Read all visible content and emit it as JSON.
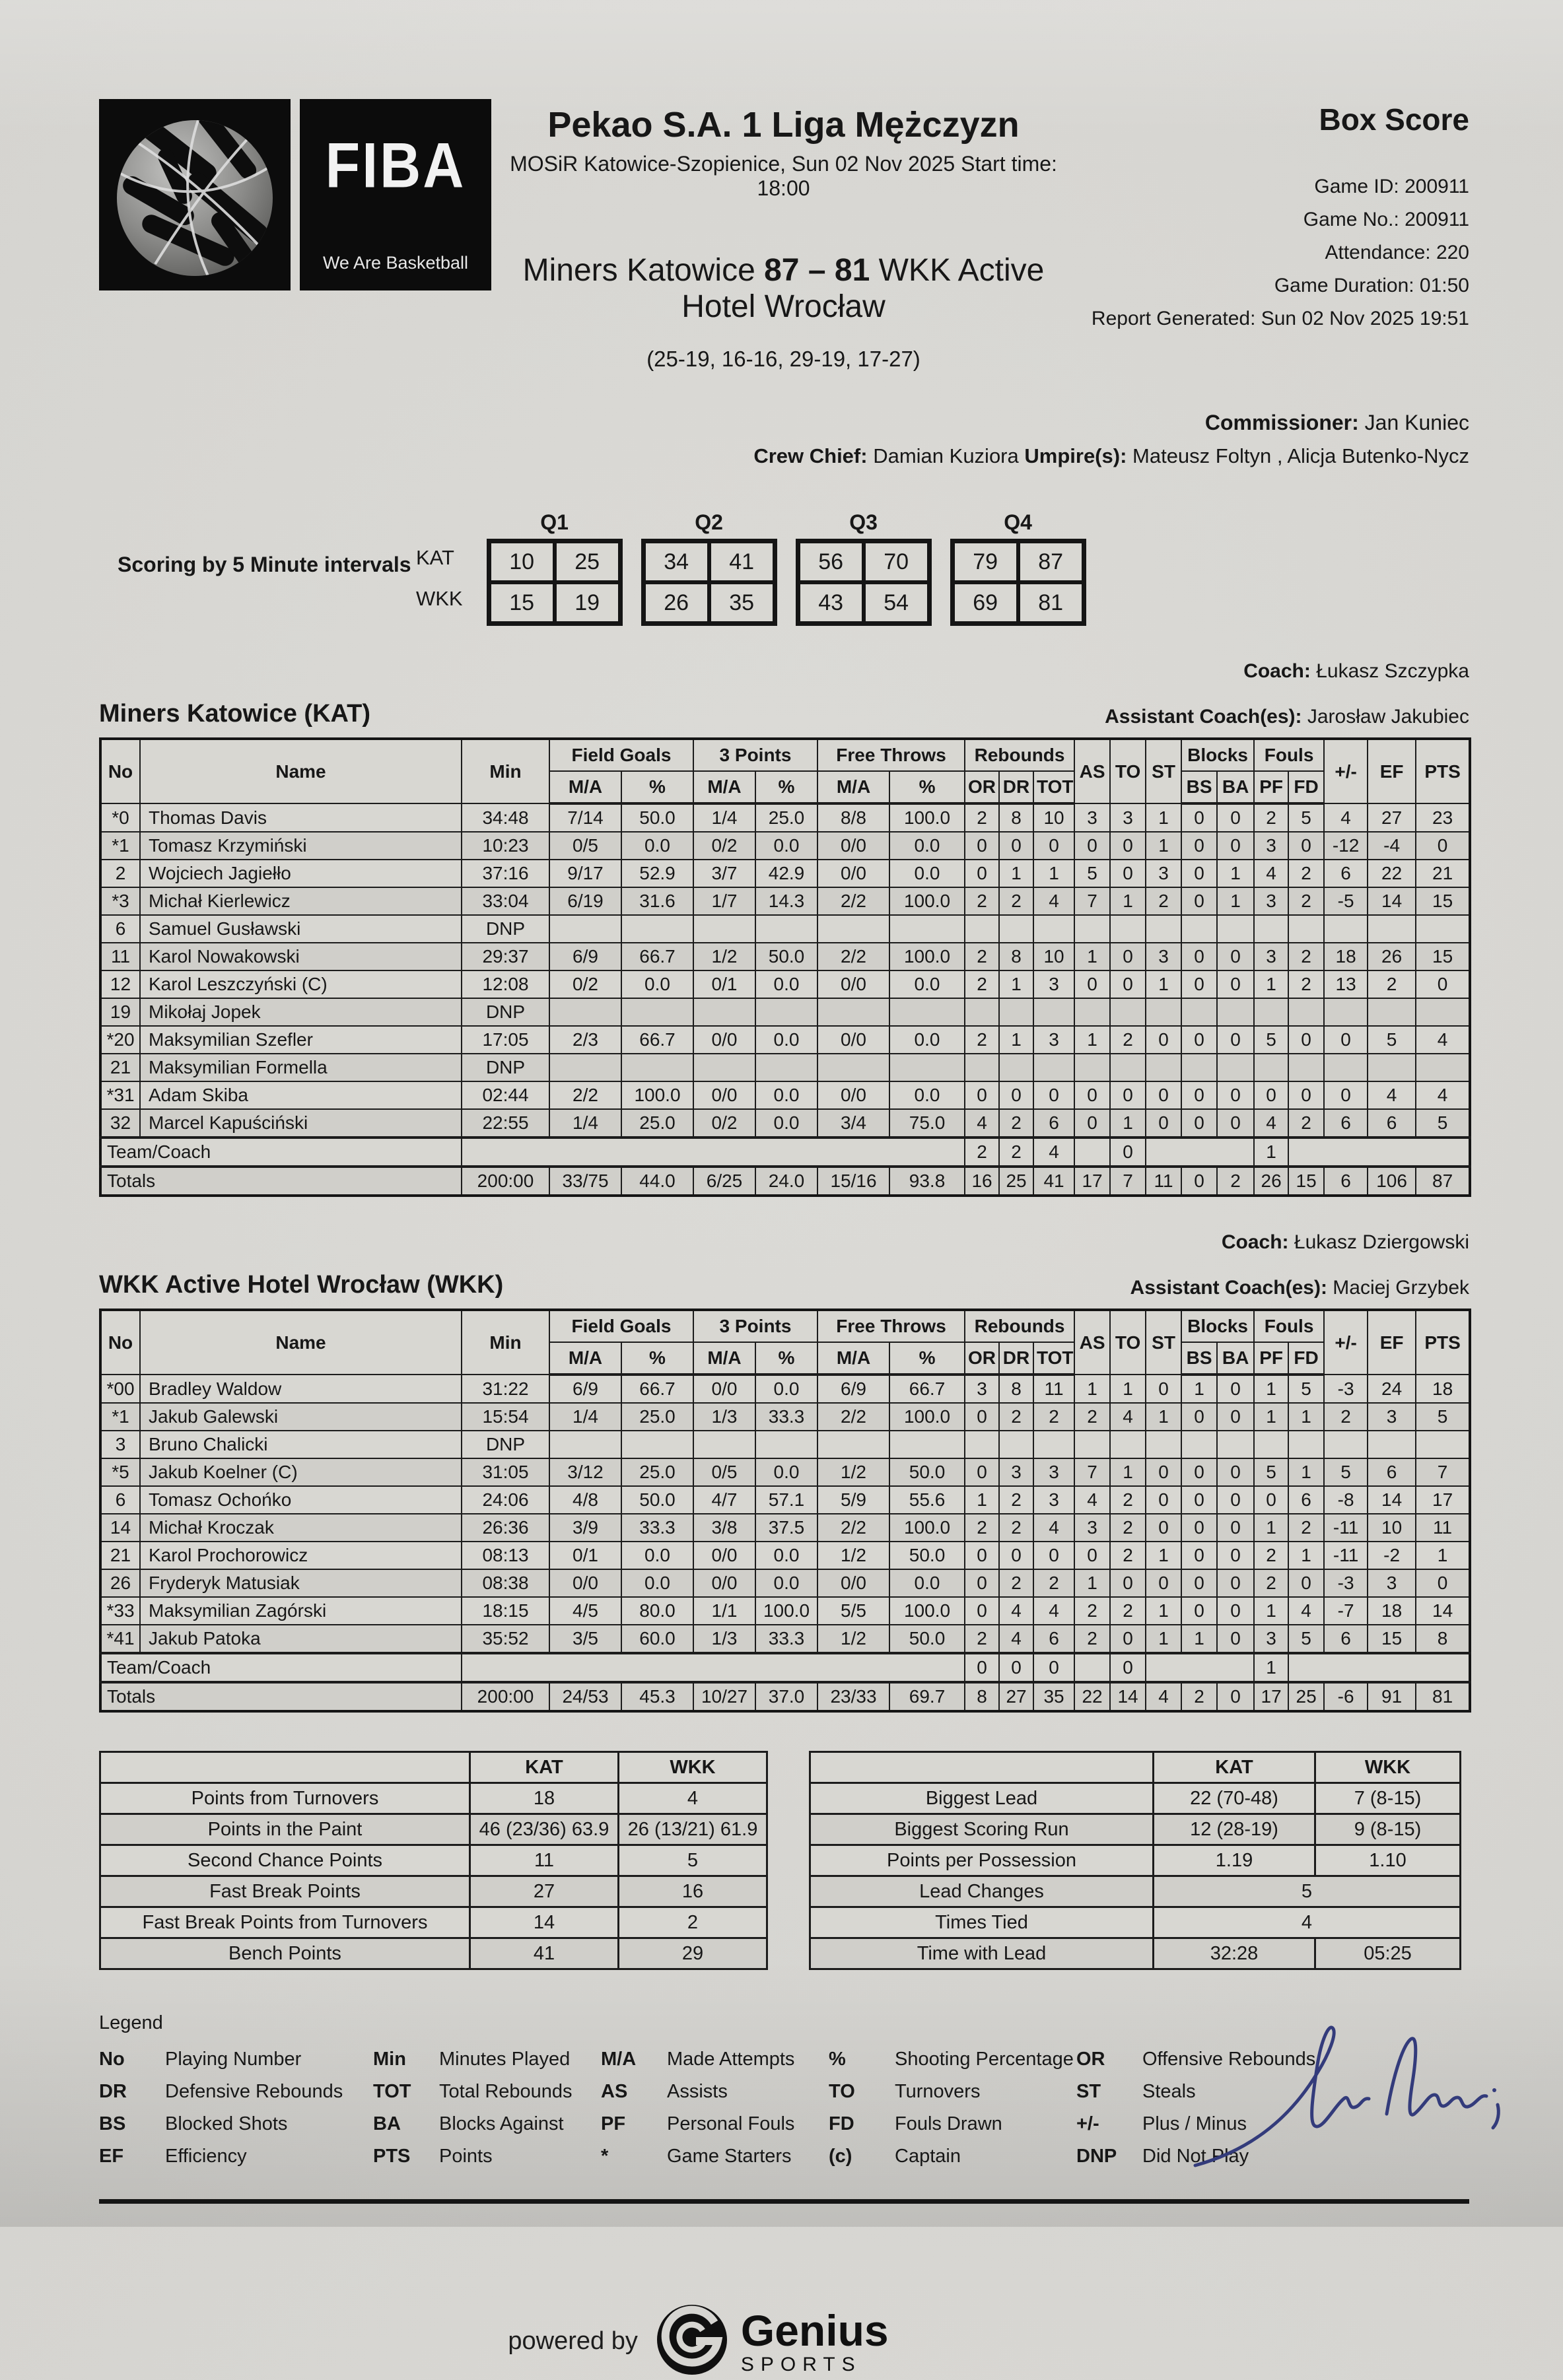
{
  "logo": {
    "fiba": "FIBA",
    "tagline": "We Are Basketball"
  },
  "header": {
    "league": "Pekao S.A. 1 Liga Mężczyzn",
    "venue": "MOSiR Katowice-Szopienice, Sun 02 Nov 2025 Start time: 18:00",
    "home_team": "Miners Katowice",
    "home_score": "87",
    "separator": "–",
    "away_score": "81",
    "away_team": "WKK Active Hotel Wrocław",
    "quarter_scores": "(25-19, 16-16, 29-19, 17-27)",
    "box_score_title": "Box Score",
    "info_lines": [
      "Game ID: 200911",
      "Game No.: 200911",
      "Attendance: 220",
      "Game Duration: 01:50",
      "Report Generated: Sun 02 Nov 2025 19:51"
    ],
    "commissioner_label": "Commissioner:",
    "commissioner": "Jan Kuniec",
    "crew_chief_label": "Crew Chief:",
    "crew_chief": "Damian Kuziora",
    "umpires_label": "Umpire(s):",
    "umpires": "Mateusz Foltyn , Alicja Butenko-Nycz"
  },
  "intervals": {
    "label": "Scoring by 5 Minute intervals",
    "quarters": [
      "Q1",
      "Q2",
      "Q3",
      "Q4"
    ],
    "rows": [
      {
        "team": "KAT",
        "values": [
          "10",
          "25",
          "34",
          "41",
          "56",
          "70",
          "79",
          "87"
        ]
      },
      {
        "team": "WKK",
        "values": [
          "15",
          "19",
          "26",
          "35",
          "43",
          "54",
          "69",
          "81"
        ]
      }
    ]
  },
  "table_header": {
    "no": "No",
    "name": "Name",
    "min": "Min",
    "field_goals": "Field Goals",
    "three_points": "3 Points",
    "free_throws": "Free Throws",
    "rebounds": "Rebounds",
    "ma": "M/A",
    "pct": "%",
    "or": "OR",
    "dr": "DR",
    "tot": "TOT",
    "as": "AS",
    "to": "TO",
    "st": "ST",
    "blocks": "Blocks",
    "bs": "BS",
    "ba": "BA",
    "fouls": "Fouls",
    "pf": "PF",
    "fd": "FD",
    "plus_minus": "+/-",
    "ef": "EF",
    "pts": "PTS",
    "dnp": "DNP"
  },
  "teams": [
    {
      "title": "Miners Katowice (KAT)",
      "coach_label": "Coach:",
      "coach": "Łukasz Szczypka",
      "assistant_label": "Assistant Coach(es):",
      "assistant": "Jarosław Jakubiec",
      "players": [
        {
          "no": "*0",
          "name": "Thomas Davis",
          "min": "34:48",
          "fg": "7/14",
          "fg_pct": "50.0",
          "p3": "1/4",
          "p3_pct": "25.0",
          "ft": "8/8",
          "ft_pct": "100.0",
          "or": "2",
          "dr": "8",
          "tot": "10",
          "as": "3",
          "to": "3",
          "st": "1",
          "bs": "0",
          "ba": "0",
          "pf": "2",
          "fd": "5",
          "pm": "4",
          "ef": "27",
          "pts": "23"
        },
        {
          "no": "*1",
          "name": "Tomasz Krzymiński",
          "min": "10:23",
          "fg": "0/5",
          "fg_pct": "0.0",
          "p3": "0/2",
          "p3_pct": "0.0",
          "ft": "0/0",
          "ft_pct": "0.0",
          "or": "0",
          "dr": "0",
          "tot": "0",
          "as": "0",
          "to": "0",
          "st": "1",
          "bs": "0",
          "ba": "0",
          "pf": "3",
          "fd": "0",
          "pm": "-12",
          "ef": "-4",
          "pts": "0"
        },
        {
          "no": "2",
          "name": "Wojciech Jagiełło",
          "min": "37:16",
          "fg": "9/17",
          "fg_pct": "52.9",
          "p3": "3/7",
          "p3_pct": "42.9",
          "ft": "0/0",
          "ft_pct": "0.0",
          "or": "0",
          "dr": "1",
          "tot": "1",
          "as": "5",
          "to": "0",
          "st": "3",
          "bs": "0",
          "ba": "1",
          "pf": "4",
          "fd": "2",
          "pm": "6",
          "ef": "22",
          "pts": "21"
        },
        {
          "no": "*3",
          "name": "Michał Kierlewicz",
          "min": "33:04",
          "fg": "6/19",
          "fg_pct": "31.6",
          "p3": "1/7",
          "p3_pct": "14.3",
          "ft": "2/2",
          "ft_pct": "100.0",
          "or": "2",
          "dr": "2",
          "tot": "4",
          "as": "7",
          "to": "1",
          "st": "2",
          "bs": "0",
          "ba": "1",
          "pf": "3",
          "fd": "2",
          "pm": "-5",
          "ef": "14",
          "pts": "15"
        },
        {
          "no": "6",
          "name": "Samuel Gusławski",
          "dnp": true
        },
        {
          "no": "11",
          "name": "Karol Nowakowski",
          "min": "29:37",
          "fg": "6/9",
          "fg_pct": "66.7",
          "p3": "1/2",
          "p3_pct": "50.0",
          "ft": "2/2",
          "ft_pct": "100.0",
          "or": "2",
          "dr": "8",
          "tot": "10",
          "as": "1",
          "to": "0",
          "st": "3",
          "bs": "0",
          "ba": "0",
          "pf": "3",
          "fd": "2",
          "pm": "18",
          "ef": "26",
          "pts": "15"
        },
        {
          "no": "12",
          "name": "Karol Leszczyński (C)",
          "min": "12:08",
          "fg": "0/2",
          "fg_pct": "0.0",
          "p3": "0/1",
          "p3_pct": "0.0",
          "ft": "0/0",
          "ft_pct": "0.0",
          "or": "2",
          "dr": "1",
          "tot": "3",
          "as": "0",
          "to": "0",
          "st": "1",
          "bs": "0",
          "ba": "0",
          "pf": "1",
          "fd": "2",
          "pm": "13",
          "ef": "2",
          "pts": "0"
        },
        {
          "no": "19",
          "name": "Mikołaj Jopek",
          "dnp": true
        },
        {
          "no": "*20",
          "name": "Maksymilian Szefler",
          "min": "17:05",
          "fg": "2/3",
          "fg_pct": "66.7",
          "p3": "0/0",
          "p3_pct": "0.0",
          "ft": "0/0",
          "ft_pct": "0.0",
          "or": "2",
          "dr": "1",
          "tot": "3",
          "as": "1",
          "to": "2",
          "st": "0",
          "bs": "0",
          "ba": "0",
          "pf": "5",
          "fd": "0",
          "pm": "0",
          "ef": "5",
          "pts": "4"
        },
        {
          "no": "21",
          "name": "Maksymilian Formella",
          "dnp": true
        },
        {
          "no": "*31",
          "name": "Adam Skiba",
          "min": "02:44",
          "fg": "2/2",
          "fg_pct": "100.0",
          "p3": "0/0",
          "p3_pct": "0.0",
          "ft": "0/0",
          "ft_pct": "0.0",
          "or": "0",
          "dr": "0",
          "tot": "0",
          "as": "0",
          "to": "0",
          "st": "0",
          "bs": "0",
          "ba": "0",
          "pf": "0",
          "fd": "0",
          "pm": "0",
          "ef": "4",
          "pts": "4"
        },
        {
          "no": "32",
          "name": "Marcel Kapuściński",
          "min": "22:55",
          "fg": "1/4",
          "fg_pct": "25.0",
          "p3": "0/2",
          "p3_pct": "0.0",
          "ft": "3/4",
          "ft_pct": "75.0",
          "or": "4",
          "dr": "2",
          "tot": "6",
          "as": "0",
          "to": "1",
          "st": "0",
          "bs": "0",
          "ba": "0",
          "pf": "4",
          "fd": "2",
          "pm": "6",
          "ef": "6",
          "pts": "5"
        }
      ],
      "team_coach": {
        "label": "Team/Coach",
        "or": "2",
        "dr": "2",
        "tot": "4",
        "to": "0",
        "pf": "1"
      },
      "totals": {
        "label": "Totals",
        "min": "200:00",
        "fg": "33/75",
        "fg_pct": "44.0",
        "p3": "6/25",
        "p3_pct": "24.0",
        "ft": "15/16",
        "ft_pct": "93.8",
        "or": "16",
        "dr": "25",
        "tot": "41",
        "as": "17",
        "to": "7",
        "st": "11",
        "bs": "0",
        "ba": "2",
        "pf": "26",
        "fd": "15",
        "pm": "6",
        "ef": "106",
        "pts": "87"
      }
    },
    {
      "title": "WKK Active Hotel Wrocław (WKK)",
      "coach_label": "Coach:",
      "coach": "Łukasz Dziergowski",
      "assistant_label": "Assistant Coach(es):",
      "assistant": "Maciej Grzybek",
      "players": [
        {
          "no": "*00",
          "name": "Bradley Waldow",
          "min": "31:22",
          "fg": "6/9",
          "fg_pct": "66.7",
          "p3": "0/0",
          "p3_pct": "0.0",
          "ft": "6/9",
          "ft_pct": "66.7",
          "or": "3",
          "dr": "8",
          "tot": "11",
          "as": "1",
          "to": "1",
          "st": "0",
          "bs": "1",
          "ba": "0",
          "pf": "1",
          "fd": "5",
          "pm": "-3",
          "ef": "24",
          "pts": "18"
        },
        {
          "no": "*1",
          "name": "Jakub Galewski",
          "min": "15:54",
          "fg": "1/4",
          "fg_pct": "25.0",
          "p3": "1/3",
          "p3_pct": "33.3",
          "ft": "2/2",
          "ft_pct": "100.0",
          "or": "0",
          "dr": "2",
          "tot": "2",
          "as": "2",
          "to": "4",
          "st": "1",
          "bs": "0",
          "ba": "0",
          "pf": "1",
          "fd": "1",
          "pm": "2",
          "ef": "3",
          "pts": "5"
        },
        {
          "no": "3",
          "name": "Bruno Chalicki",
          "dnp": true
        },
        {
          "no": "*5",
          "name": "Jakub Koelner (C)",
          "min": "31:05",
          "fg": "3/12",
          "fg_pct": "25.0",
          "p3": "0/5",
          "p3_pct": "0.0",
          "ft": "1/2",
          "ft_pct": "50.0",
          "or": "0",
          "dr": "3",
          "tot": "3",
          "as": "7",
          "to": "1",
          "st": "0",
          "bs": "0",
          "ba": "0",
          "pf": "5",
          "fd": "1",
          "pm": "5",
          "ef": "6",
          "pts": "7"
        },
        {
          "no": "6",
          "name": "Tomasz Ochońko",
          "min": "24:06",
          "fg": "4/8",
          "fg_pct": "50.0",
          "p3": "4/7",
          "p3_pct": "57.1",
          "ft": "5/9",
          "ft_pct": "55.6",
          "or": "1",
          "dr": "2",
          "tot": "3",
          "as": "4",
          "to": "2",
          "st": "0",
          "bs": "0",
          "ba": "0",
          "pf": "0",
          "fd": "6",
          "pm": "-8",
          "ef": "14",
          "pts": "17"
        },
        {
          "no": "14",
          "name": "Michał Kroczak",
          "min": "26:36",
          "fg": "3/9",
          "fg_pct": "33.3",
          "p3": "3/8",
          "p3_pct": "37.5",
          "ft": "2/2",
          "ft_pct": "100.0",
          "or": "2",
          "dr": "2",
          "tot": "4",
          "as": "3",
          "to": "2",
          "st": "0",
          "bs": "0",
          "ba": "0",
          "pf": "1",
          "fd": "2",
          "pm": "-11",
          "ef": "10",
          "pts": "11"
        },
        {
          "no": "21",
          "name": "Karol Prochorowicz",
          "min": "08:13",
          "fg": "0/1",
          "fg_pct": "0.0",
          "p3": "0/0",
          "p3_pct": "0.0",
          "ft": "1/2",
          "ft_pct": "50.0",
          "or": "0",
          "dr": "0",
          "tot": "0",
          "as": "0",
          "to": "2",
          "st": "1",
          "bs": "0",
          "ba": "0",
          "pf": "2",
          "fd": "1",
          "pm": "-11",
          "ef": "-2",
          "pts": "1"
        },
        {
          "no": "26",
          "name": "Fryderyk Matusiak",
          "min": "08:38",
          "fg": "0/0",
          "fg_pct": "0.0",
          "p3": "0/0",
          "p3_pct": "0.0",
          "ft": "0/0",
          "ft_pct": "0.0",
          "or": "0",
          "dr": "2",
          "tot": "2",
          "as": "1",
          "to": "0",
          "st": "0",
          "bs": "0",
          "ba": "0",
          "pf": "2",
          "fd": "0",
          "pm": "-3",
          "ef": "3",
          "pts": "0"
        },
        {
          "no": "*33",
          "name": "Maksymilian Zagórski",
          "min": "18:15",
          "fg": "4/5",
          "fg_pct": "80.0",
          "p3": "1/1",
          "p3_pct": "100.0",
          "ft": "5/5",
          "ft_pct": "100.0",
          "or": "0",
          "dr": "4",
          "tot": "4",
          "as": "2",
          "to": "2",
          "st": "1",
          "bs": "0",
          "ba": "0",
          "pf": "1",
          "fd": "4",
          "pm": "-7",
          "ef": "18",
          "pts": "14"
        },
        {
          "no": "*41",
          "name": "Jakub Patoka",
          "min": "35:52",
          "fg": "3/5",
          "fg_pct": "60.0",
          "p3": "1/3",
          "p3_pct": "33.3",
          "ft": "1/2",
          "ft_pct": "50.0",
          "or": "2",
          "dr": "4",
          "tot": "6",
          "as": "2",
          "to": "0",
          "st": "1",
          "bs": "1",
          "ba": "0",
          "pf": "3",
          "fd": "5",
          "pm": "6",
          "ef": "15",
          "pts": "8"
        }
      ],
      "team_coach": {
        "label": "Team/Coach",
        "or": "0",
        "dr": "0",
        "tot": "0",
        "to": "0",
        "pf": "1"
      },
      "totals": {
        "label": "Totals",
        "min": "200:00",
        "fg": "24/53",
        "fg_pct": "45.3",
        "p3": "10/27",
        "p3_pct": "37.0",
        "ft": "23/33",
        "ft_pct": "69.7",
        "or": "8",
        "dr": "27",
        "tot": "35",
        "as": "22",
        "to": "14",
        "st": "4",
        "bs": "2",
        "ba": "0",
        "pf": "17",
        "fd": "25",
        "pm": "-6",
        "ef": "91",
        "pts": "81"
      }
    }
  ],
  "stats_left": {
    "col_team1": "KAT",
    "col_team2": "WKK",
    "rows": [
      [
        "Points from Turnovers",
        "18",
        "4"
      ],
      [
        "Points in the Paint",
        "46 (23/36) 63.9",
        "26 (13/21) 61.9"
      ],
      [
        "Second Chance Points",
        "11",
        "5"
      ],
      [
        "Fast Break Points",
        "27",
        "16"
      ],
      [
        "Fast Break Points from Turnovers",
        "14",
        "2"
      ],
      [
        "Bench Points",
        "41",
        "29"
      ]
    ]
  },
  "stats_right": {
    "col_team1": "KAT",
    "col_team2": "WKK",
    "rows": [
      {
        "label": "Biggest Lead",
        "kat": "22 (70-48)",
        "wkk": "7 (8-15)"
      },
      {
        "label": "Biggest Scoring Run",
        "kat": "12 (28-19)",
        "wkk": "9 (8-15)"
      },
      {
        "label": "Points per Possession",
        "kat": "1.19",
        "wkk": "1.10"
      },
      {
        "label": "Lead Changes",
        "span": "5"
      },
      {
        "label": "Times Tied",
        "span": "4"
      },
      {
        "label": "Time with Lead",
        "kat": "32:28",
        "wkk": "05:25"
      }
    ]
  },
  "legend": {
    "title": "Legend",
    "rows": [
      [
        [
          "No",
          "Playing Number"
        ],
        [
          "Min",
          "Minutes Played"
        ],
        [
          "M/A",
          "Made Attempts"
        ],
        [
          "%",
          "Shooting Percentage"
        ],
        [
          "OR",
          "Offensive Rebounds"
        ]
      ],
      [
        [
          "DR",
          "Defensive Rebounds"
        ],
        [
          "TOT",
          "Total Rebounds"
        ],
        [
          "AS",
          "Assists"
        ],
        [
          "TO",
          "Turnovers"
        ],
        [
          "ST",
          "Steals"
        ]
      ],
      [
        [
          "BS",
          "Blocked Shots"
        ],
        [
          "BA",
          "Blocks Against"
        ],
        [
          "PF",
          "Personal Fouls"
        ],
        [
          "FD",
          "Fouls Drawn"
        ],
        [
          "+/-",
          "Plus / Minus"
        ]
      ],
      [
        [
          "EF",
          "Efficiency"
        ],
        [
          "PTS",
          "Points"
        ],
        [
          "*",
          "Game Starters"
        ],
        [
          "(c)",
          "Captain"
        ],
        [
          "DNP",
          "Did Not Play"
        ]
      ]
    ]
  },
  "footer": {
    "powered_by": "powered by",
    "brand": "Genius",
    "brand_sub": "SPORTS"
  }
}
